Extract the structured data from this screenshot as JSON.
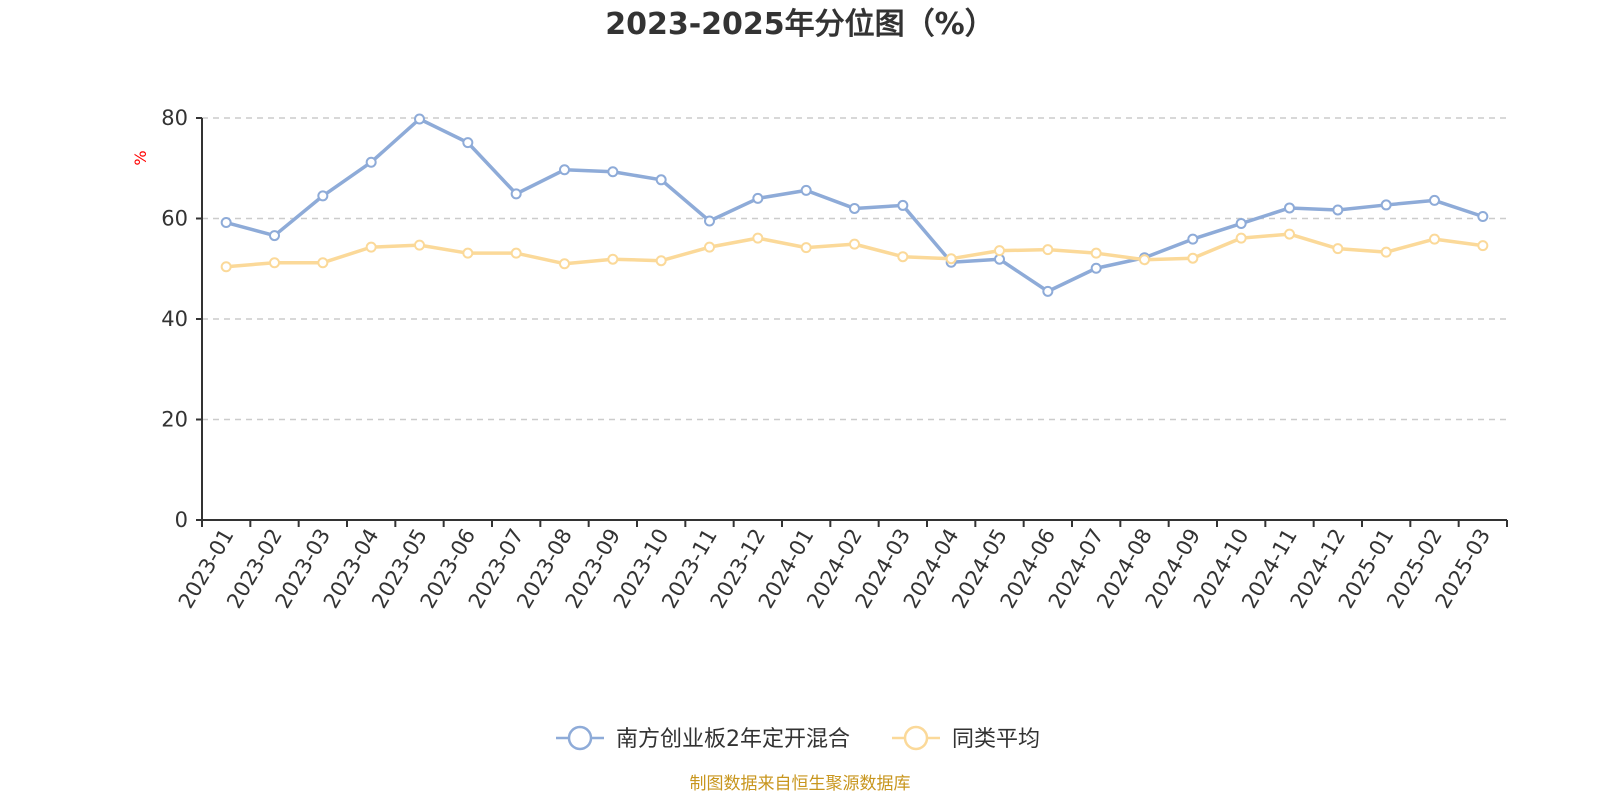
{
  "chart_data": {
    "type": "line",
    "title": "2023-2025年分位图（%）",
    "ylabel": "%",
    "xlabel": "",
    "ylim": [
      0,
      80
    ],
    "yticks": [
      0,
      20,
      40,
      60,
      80
    ],
    "grid": true,
    "legend_position": "bottom",
    "categories": [
      "2023-01",
      "2023-02",
      "2023-03",
      "2023-04",
      "2023-05",
      "2023-06",
      "2023-07",
      "2023-08",
      "2023-09",
      "2023-10",
      "2023-11",
      "2023-12",
      "2024-01",
      "2024-02",
      "2024-03",
      "2024-04",
      "2024-05",
      "2024-06",
      "2024-07",
      "2024-08",
      "2024-09",
      "2024-10",
      "2024-11",
      "2024-12",
      "2025-01",
      "2025-02",
      "2025-03"
    ],
    "series": [
      {
        "name": "南方创业板2年定开混合",
        "color": "#8eabd8",
        "values": [
          59.2,
          56.6,
          64.5,
          71.2,
          79.8,
          75.1,
          64.9,
          69.7,
          69.3,
          67.7,
          59.5,
          64.0,
          65.6,
          62.0,
          62.6,
          51.3,
          51.9,
          45.5,
          50.1,
          52.2,
          55.9,
          59.0,
          62.1,
          61.7,
          62.7,
          63.6,
          60.4
        ]
      },
      {
        "name": "同类平均",
        "color": "#fbd999",
        "values": [
          50.4,
          51.2,
          51.2,
          54.3,
          54.7,
          53.1,
          53.1,
          51.0,
          51.9,
          51.6,
          54.3,
          56.1,
          54.2,
          54.9,
          52.4,
          52.0,
          53.6,
          53.8,
          53.1,
          51.8,
          52.1,
          56.1,
          56.9,
          54.0,
          53.3,
          55.9,
          54.6
        ]
      }
    ],
    "source": "制图数据来自恒生聚源数据库",
    "title_color": "#333333",
    "ylabel_color": "#ff0000",
    "source_color": "#c8961e"
  }
}
